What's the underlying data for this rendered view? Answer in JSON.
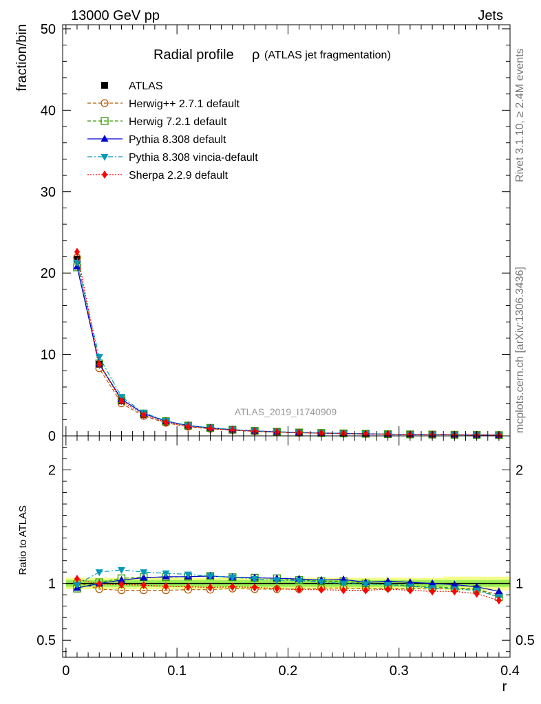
{
  "header": {
    "left": "13000 GeV pp",
    "right": "Jets"
  },
  "side_text": {
    "top": "Rivet 3.1.10, ≥ 2.4M events",
    "bottom": "mcplots.cern.ch [arXiv:1306.3436]"
  },
  "watermark": "ATLAS_2019_I1740909",
  "chart_data": [
    {
      "type": "line",
      "title": "Radial profile ρ (ATLAS jet fragmentation)",
      "title_main": "Radial profile",
      "title_symbol": "ρ",
      "title_sub": "(ATLAS jet fragmentation)",
      "ylabel": "fraction/bin",
      "xlabel": "",
      "xlim": [
        -0.003,
        0.4
      ],
      "ylim": [
        0,
        50.5
      ],
      "yticks": [
        0,
        10,
        20,
        30,
        40,
        50
      ],
      "grid": false,
      "legend_position": "top-left",
      "x": [
        0.01,
        0.03,
        0.05,
        0.07,
        0.09,
        0.11,
        0.13,
        0.15,
        0.17,
        0.19,
        0.21,
        0.23,
        0.25,
        0.27,
        0.29,
        0.31,
        0.33,
        0.35,
        0.37,
        0.39
      ],
      "series": [
        {
          "name": "ATLAS",
          "color": "#000000",
          "marker": "square-filled",
          "line": "none",
          "values": [
            21.7,
            8.8,
            4.3,
            2.6,
            1.7,
            1.2,
            0.92,
            0.72,
            0.58,
            0.48,
            0.4,
            0.34,
            0.29,
            0.25,
            0.21,
            0.18,
            0.16,
            0.14,
            0.12,
            0.1
          ]
        },
        {
          "name": "Herwig++ 2.7.1 default",
          "color": "#b35900",
          "marker": "circle-open",
          "line": "dashed",
          "values": [
            21.9,
            8.3,
            4.0,
            2.45,
            1.6,
            1.12,
            0.87,
            0.69,
            0.55,
            0.46,
            0.38,
            0.33,
            0.28,
            0.24,
            0.2,
            0.17,
            0.15,
            0.13,
            0.11,
            0.09
          ]
        },
        {
          "name": "Herwig 7.2.1 default",
          "color": "#339900",
          "marker": "square-open",
          "line": "dashed",
          "values": [
            20.7,
            8.9,
            4.5,
            2.75,
            1.8,
            1.27,
            0.98,
            0.76,
            0.61,
            0.5,
            0.41,
            0.35,
            0.3,
            0.26,
            0.21,
            0.18,
            0.16,
            0.13,
            0.11,
            0.09
          ]
        },
        {
          "name": "Pythia 8.308 default",
          "color": "#0000cc",
          "marker": "triangle-up",
          "line": "solid",
          "values": [
            20.8,
            8.8,
            4.5,
            2.75,
            1.8,
            1.27,
            0.98,
            0.76,
            0.61,
            0.5,
            0.41,
            0.35,
            0.3,
            0.25,
            0.21,
            0.18,
            0.16,
            0.14,
            0.12,
            0.09
          ]
        },
        {
          "name": "Pythia 8.308 vincia-default",
          "color": "#0099bb",
          "marker": "triangle-down",
          "line": "dashdot",
          "values": [
            21.3,
            9.7,
            4.8,
            2.85,
            1.85,
            1.29,
            0.98,
            0.76,
            0.6,
            0.49,
            0.41,
            0.35,
            0.29,
            0.25,
            0.21,
            0.18,
            0.15,
            0.13,
            0.11,
            0.09
          ]
        },
        {
          "name": "Sherpa 2.2.9 default",
          "color": "#ff0000",
          "marker": "diamond",
          "line": "dotted",
          "values": [
            22.6,
            8.8,
            4.3,
            2.57,
            1.67,
            1.16,
            0.89,
            0.7,
            0.56,
            0.46,
            0.38,
            0.32,
            0.27,
            0.23,
            0.2,
            0.16,
            0.15,
            0.13,
            0.11,
            0.086
          ]
        }
      ]
    },
    {
      "type": "line",
      "title": "",
      "ylabel": "Ratio to ATLAS",
      "xlabel": "r",
      "xlim": [
        -0.003,
        0.4
      ],
      "ylim": [
        0.35,
        2.3
      ],
      "yticks": [
        0.5,
        1,
        2
      ],
      "ytick_labels": [
        "0.5",
        "1",
        "2"
      ],
      "xticks": [
        0,
        0.1,
        0.2,
        0.3,
        0.4
      ],
      "xtick_labels": [
        "0",
        "0.1",
        "0.2",
        "0.3",
        "0.4"
      ],
      "grid": false,
      "band_inner_color": "#99ee55",
      "band_outer_color": "#f2ff88",
      "band_inner_halfwidth": [
        0.03,
        0.03,
        0.03,
        0.03,
        0.03,
        0.03,
        0.03,
        0.03,
        0.03,
        0.03,
        0.03,
        0.03,
        0.03,
        0.03,
        0.03,
        0.03,
        0.03,
        0.03,
        0.03,
        0.03
      ],
      "band_outer_halfwidth": [
        0.05,
        0.05,
        0.05,
        0.05,
        0.05,
        0.05,
        0.05,
        0.05,
        0.05,
        0.05,
        0.05,
        0.05,
        0.05,
        0.05,
        0.05,
        0.05,
        0.05,
        0.06,
        0.06,
        0.06
      ],
      "x": [
        0.01,
        0.03,
        0.05,
        0.07,
        0.09,
        0.11,
        0.13,
        0.15,
        0.17,
        0.19,
        0.21,
        0.23,
        0.25,
        0.27,
        0.29,
        0.31,
        0.33,
        0.35,
        0.37,
        0.39
      ],
      "series": [
        {
          "name": "Herwig++ 2.7.1 default",
          "color": "#b35900",
          "marker": "circle-open",
          "line": "dashed",
          "values": [
            1.01,
            0.95,
            0.94,
            0.94,
            0.94,
            0.945,
            0.945,
            0.955,
            0.95,
            0.95,
            0.95,
            0.96,
            0.96,
            0.955,
            0.96,
            0.955,
            0.95,
            0.955,
            0.95,
            0.9
          ]
        },
        {
          "name": "Herwig 7.2.1 default",
          "color": "#339900",
          "marker": "square-open",
          "line": "dashed",
          "values": [
            0.955,
            1.01,
            1.045,
            1.055,
            1.055,
            1.06,
            1.065,
            1.055,
            1.05,
            1.045,
            1.03,
            1.02,
            1.02,
            1.0,
            0.99,
            0.98,
            0.97,
            0.96,
            0.95,
            0.88
          ]
        },
        {
          "name": "Pythia 8.308 default",
          "color": "#0000cc",
          "marker": "triangle-up",
          "line": "solid",
          "values": [
            0.96,
            1.0,
            1.03,
            1.05,
            1.06,
            1.06,
            1.065,
            1.055,
            1.05,
            1.045,
            1.04,
            1.03,
            1.035,
            1.01,
            1.02,
            1.01,
            1.0,
            0.99,
            0.97,
            0.93
          ]
        },
        {
          "name": "Pythia 8.308 vincia-default",
          "color": "#0099bb",
          "marker": "triangle-down",
          "line": "dashdot",
          "values": [
            0.99,
            1.1,
            1.12,
            1.1,
            1.09,
            1.08,
            1.065,
            1.055,
            1.04,
            1.03,
            1.025,
            1.015,
            1.0,
            0.995,
            0.99,
            0.975,
            0.96,
            0.95,
            0.94,
            0.88
          ]
        },
        {
          "name": "Sherpa 2.2.9 default",
          "color": "#ff0000",
          "marker": "diamond",
          "line": "dotted",
          "values": [
            1.04,
            0.995,
            0.99,
            0.985,
            0.975,
            0.97,
            0.965,
            0.97,
            0.965,
            0.955,
            0.945,
            0.945,
            0.94,
            0.94,
            0.95,
            0.94,
            0.93,
            0.93,
            0.91,
            0.85
          ]
        }
      ]
    }
  ]
}
